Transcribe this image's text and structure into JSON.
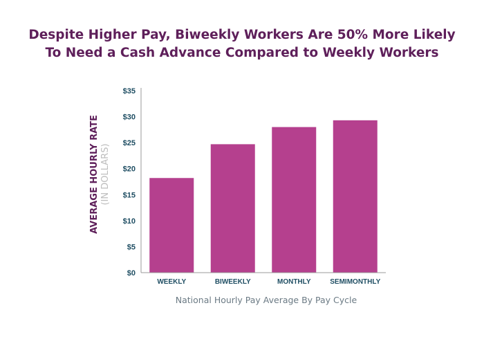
{
  "chart_data": {
    "type": "bar",
    "title_lines": [
      "Despite Higher Pay, Biweekly Workers Are 50% More Likely",
      "To Need a Cash Advance Compared to Weekly Workers"
    ],
    "categories": [
      "WEEKLY",
      "BIWEEKLY",
      "MONTHLY",
      "SEMIMONTHLY"
    ],
    "values": [
      18.2,
      24.7,
      28.0,
      29.3
    ],
    "xlabel": "National Hourly Pay Average By Pay Cycle",
    "ylabel": "AVERAGE HOURLY RATE",
    "ylabel_sub": "(IN DOLLARS)",
    "ylim": [
      0,
      35
    ],
    "yticks": [
      0,
      5,
      10,
      15,
      20,
      25,
      30,
      35
    ],
    "ytick_labels": [
      "$0",
      "$5",
      "$10",
      "$15",
      "$20",
      "$25",
      "$30",
      "$35"
    ],
    "bar_color": "#b5408e",
    "grid": false,
    "legend": "none"
  }
}
